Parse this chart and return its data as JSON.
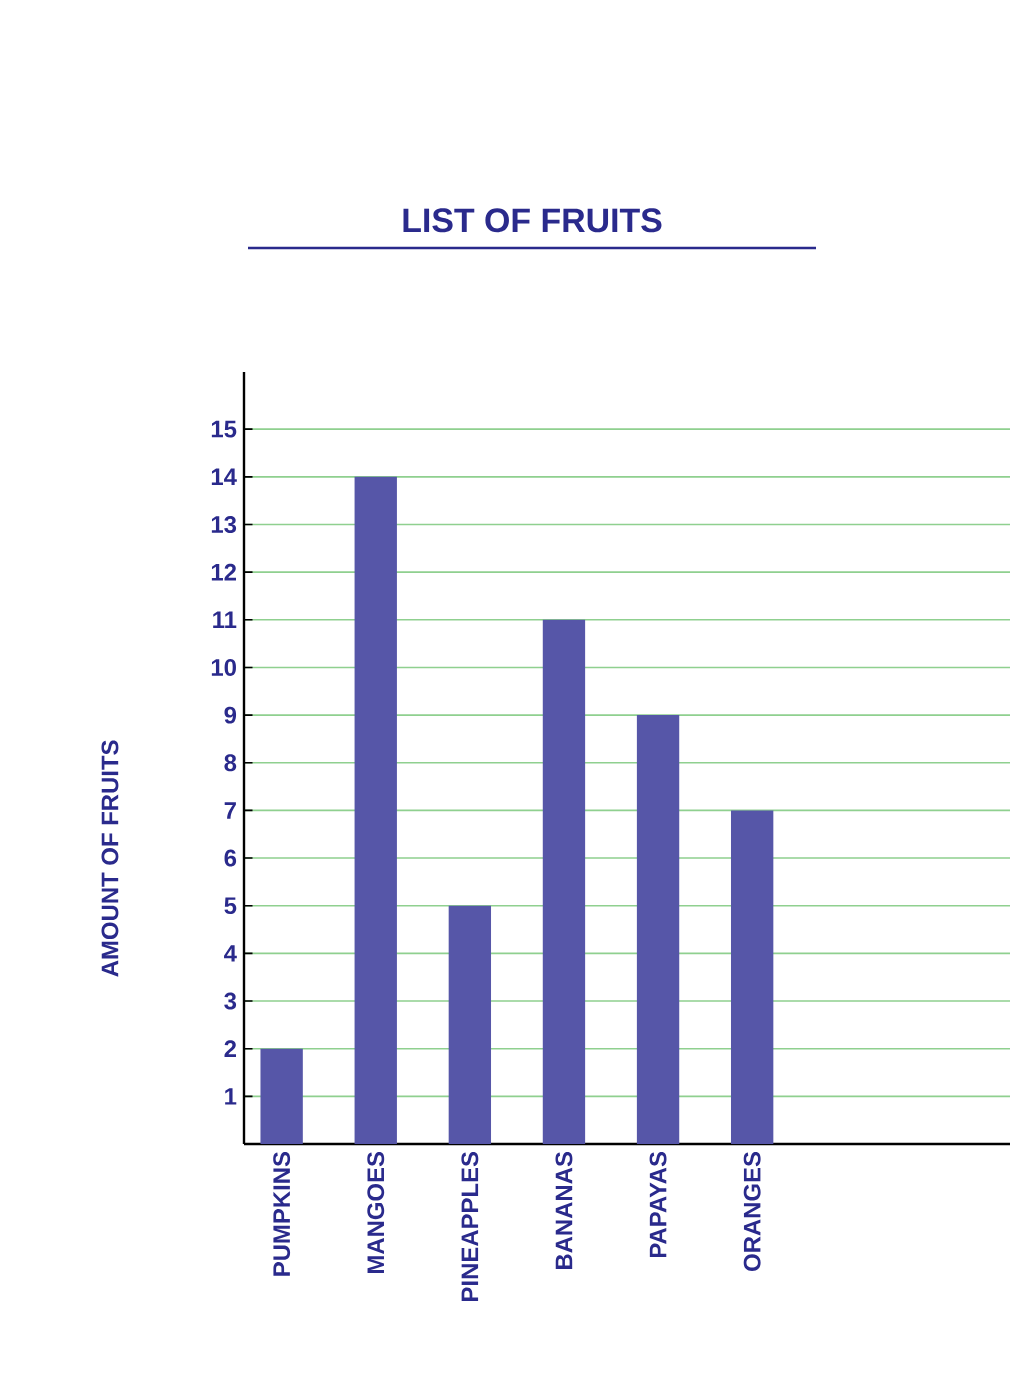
{
  "chart_data": {
    "type": "bar",
    "title": "LIST OF FRUITS",
    "categories": [
      "PUMPKINS",
      "MANGOES",
      "PINEAPPLES",
      "BANANAS",
      "PAPAYAS",
      "ORANGES"
    ],
    "values": [
      2,
      14,
      5,
      11,
      9,
      7
    ],
    "color": "#5656a8",
    "ylabel": "AMOUNT OF FRUITS",
    "ylim": [
      0,
      16.2
    ],
    "yticks": [
      1,
      2,
      3,
      4,
      5,
      6,
      7,
      8,
      9,
      10,
      11,
      12,
      13,
      14,
      15
    ],
    "grid": "y"
  }
}
